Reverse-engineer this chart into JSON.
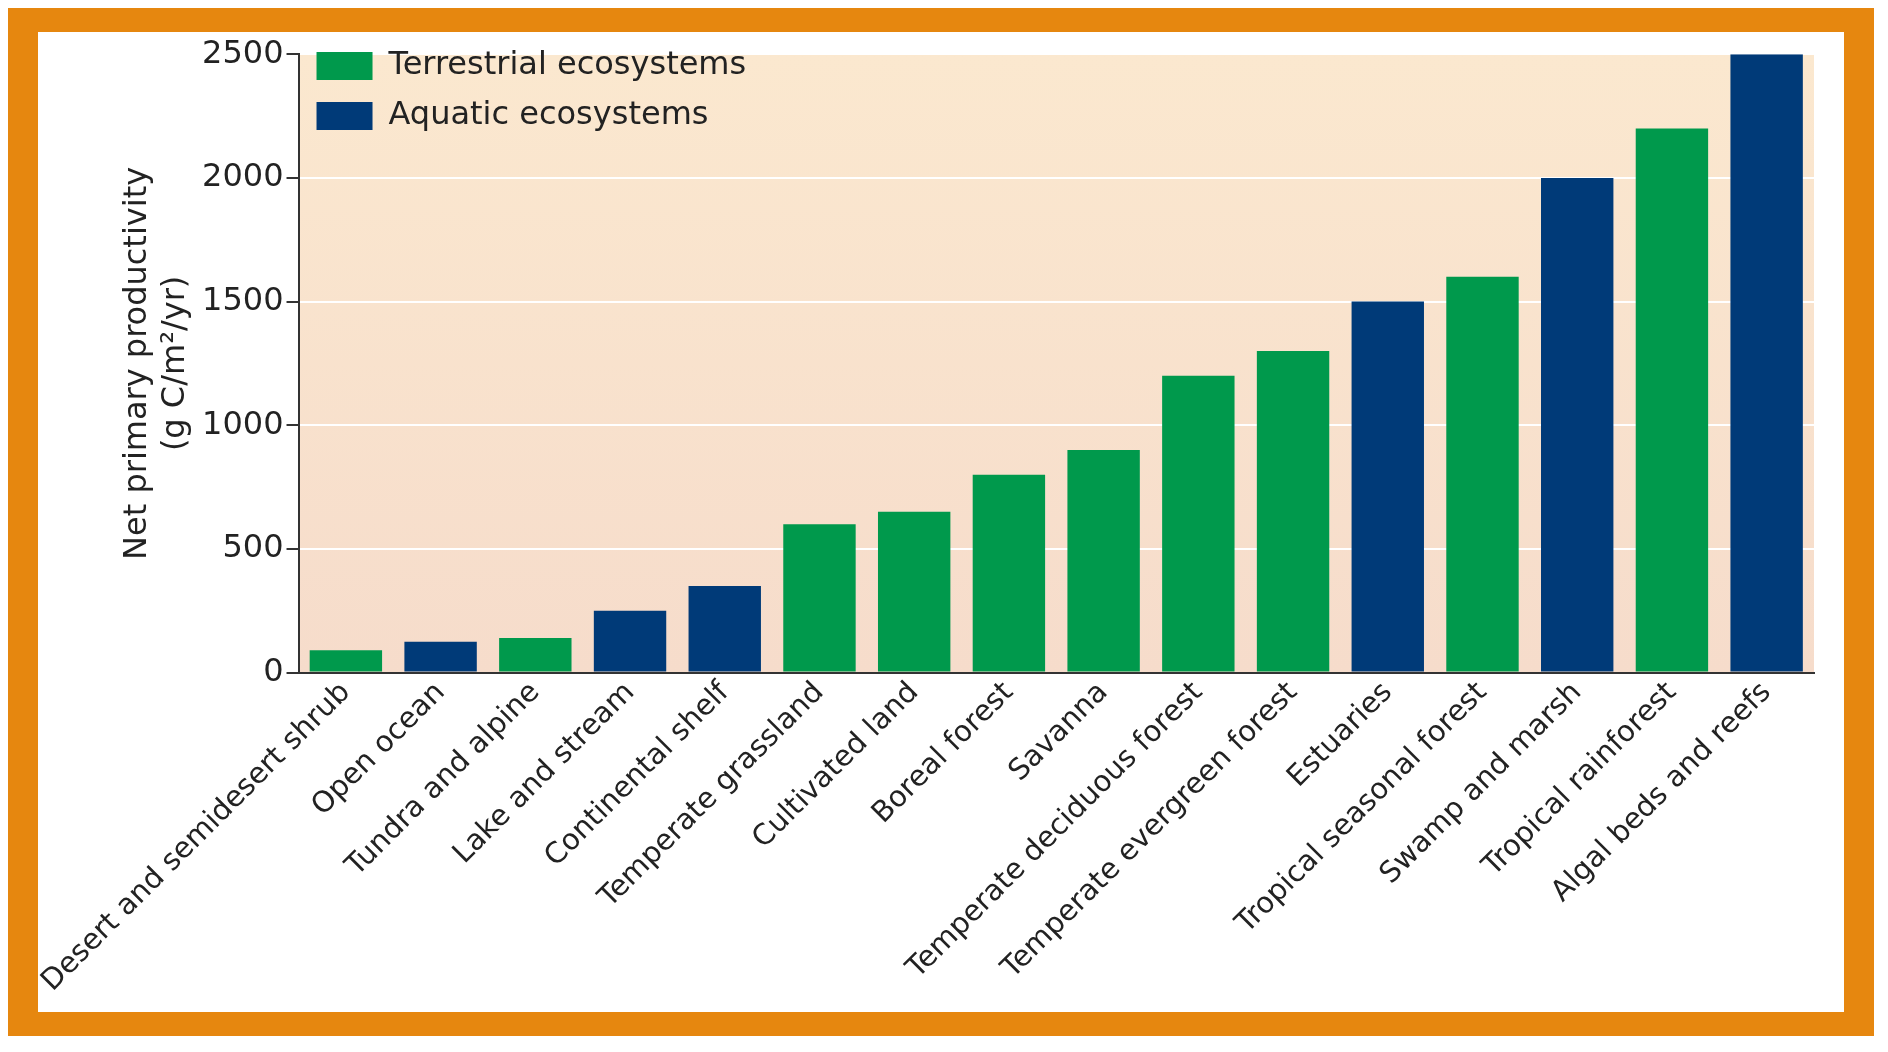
{
  "chart_data": {
    "type": "bar",
    "ylabel": "Net primary productivity\n(g C/m²/yr)",
    "categories": [
      "Desert and semidesert shrub",
      "Open ocean",
      "Tundra and alpine",
      "Lake and stream",
      "Continental shelf",
      "Temperate grassland",
      "Cultivated land",
      "Boreal forest",
      "Savanna",
      "Temperate deciduous forest",
      "Temperate evergreen forest",
      "Estuaries",
      "Tropical seasonal forest",
      "Swamp and marsh",
      "Tropical rainforest",
      "Algal beds and reefs"
    ],
    "series": [
      {
        "name": "Terrestrial ecosystems",
        "color": "#00994c",
        "values": [
          90,
          null,
          140,
          null,
          null,
          600,
          650,
          800,
          900,
          1200,
          1300,
          null,
          1600,
          null,
          2200,
          null
        ]
      },
      {
        "name": "Aquatic ecosystems",
        "color": "#003a78",
        "values": [
          null,
          125,
          null,
          250,
          350,
          null,
          null,
          null,
          null,
          null,
          null,
          1500,
          null,
          2000,
          null,
          2500
        ]
      }
    ],
    "ylim": [
      0,
      2500
    ],
    "yticks": [
      0,
      500,
      1000,
      1500,
      2000,
      2500
    ],
    "grid": "y",
    "legend": "top left"
  }
}
